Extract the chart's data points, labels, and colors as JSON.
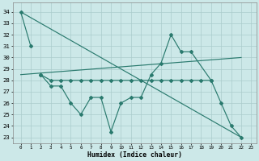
{
  "xlabel": "Humidex (Indice chaleur)",
  "x_range": [
    0,
    23
  ],
  "color": "#2a7a6e",
  "bg_color": "#cce8e8",
  "grid_color": "#aacccc",
  "ylim": [
    22.5,
    34.8
  ],
  "yticks": [
    23,
    24,
    25,
    26,
    27,
    28,
    29,
    30,
    31,
    32,
    33,
    34
  ],
  "series1_x": [
    0,
    1
  ],
  "series1_y": [
    34,
    31
  ],
  "series2_x": [
    2,
    3,
    4,
    5,
    6,
    7,
    8,
    9,
    10,
    11,
    12,
    13,
    14,
    15,
    16,
    17,
    19,
    20,
    21,
    22
  ],
  "series2_y": [
    28.5,
    27.5,
    27.5,
    26.0,
    25.0,
    26.5,
    26.5,
    23.5,
    26.0,
    26.5,
    26.5,
    28.5,
    29.5,
    32.0,
    30.5,
    30.5,
    28.0,
    26.0,
    24.0,
    23.0
  ],
  "series3_x": [
    2,
    3,
    4,
    5,
    6,
    7,
    8,
    9,
    10,
    11,
    12,
    13,
    14,
    15,
    16,
    17,
    18,
    19
  ],
  "series3_y": [
    28.5,
    28.0,
    28.0,
    28.0,
    28.0,
    28.0,
    28.0,
    28.0,
    28.0,
    28.0,
    28.0,
    28.0,
    28.0,
    28.0,
    28.0,
    28.0,
    28.0,
    28.0
  ],
  "trend1_x": [
    0,
    22
  ],
  "trend1_y": [
    34.0,
    23.0
  ],
  "trend2_x": [
    0,
    22
  ],
  "trend2_y": [
    28.5,
    30.0
  ]
}
